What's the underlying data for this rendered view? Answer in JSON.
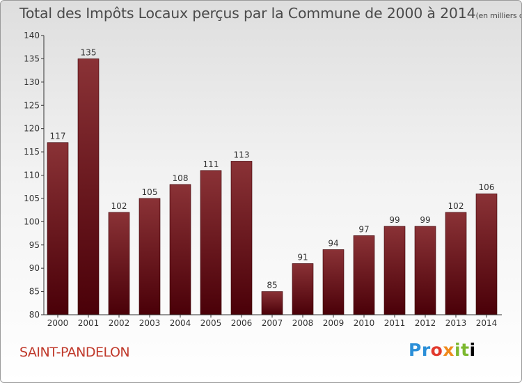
{
  "title": {
    "main": "Total des Impôts Locaux perçus par la Commune de 2000 à 2014",
    "unit": "(en milliers d'€)"
  },
  "commune": "SAINT-PANDELON",
  "logo_text": "Proxiti",
  "colors": {
    "bar_top": "#8a3236",
    "bar_bottom": "#4a0008",
    "commune": "#c0392b",
    "axis": "#333333"
  },
  "chart_data": {
    "type": "bar",
    "title": "Total des Impôts Locaux perçus par la Commune de 2000 à 2014",
    "xlabel": "",
    "ylabel": "",
    "categories": [
      "2000",
      "2001",
      "2002",
      "2003",
      "2004",
      "2005",
      "2006",
      "2007",
      "2008",
      "2009",
      "2010",
      "2011",
      "2012",
      "2013",
      "2014"
    ],
    "values": [
      117,
      135,
      102,
      105,
      108,
      111,
      113,
      85,
      91,
      94,
      97,
      99,
      99,
      102,
      106
    ],
    "ylim": [
      80,
      140
    ],
    "yticks": [
      80,
      85,
      90,
      95,
      100,
      105,
      110,
      115,
      120,
      125,
      130,
      135,
      140
    ],
    "grid": false,
    "data_labels": true
  }
}
